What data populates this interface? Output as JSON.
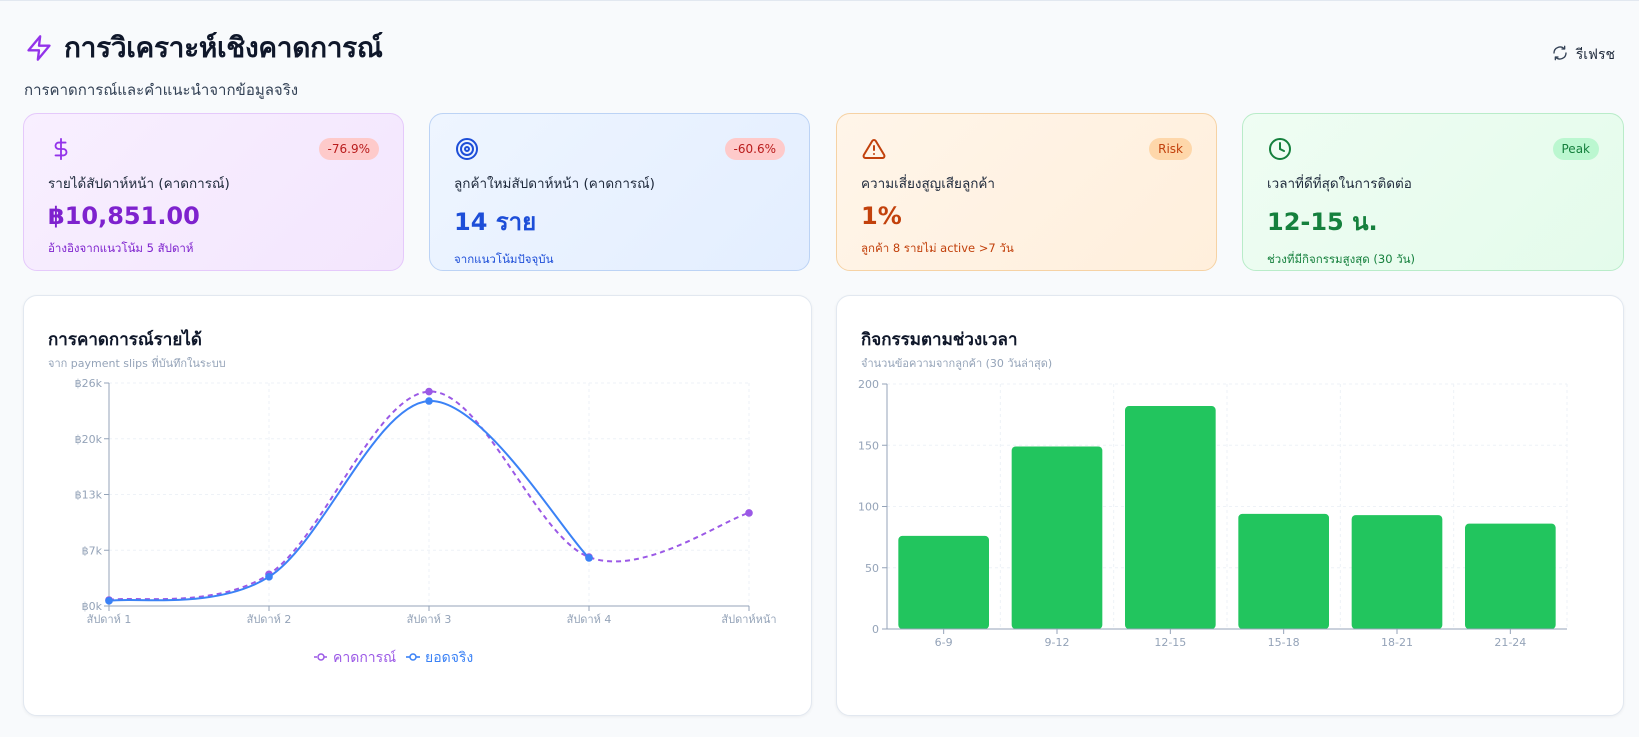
{
  "header": {
    "title": "การวิเคราะห์เชิงคาดการณ์",
    "subtitle": "การคาดการณ์และคำแนะนำจากข้อมูลจริง",
    "refresh_label": "รีเฟรช",
    "icon": "lightning-icon",
    "accent_color": "#9333ea"
  },
  "kpis": [
    {
      "icon": "dollar-icon",
      "label": "รายได้สัปดาห์หน้า (คาดการณ์)",
      "value": "฿10,851.00",
      "note": "อ้างอิงจากแนวโน้ม 5 สัปดาห์",
      "badge": "-76.9%"
    },
    {
      "icon": "target-icon",
      "label": "ลูกค้าใหม่สัปดาห์หน้า (คาดการณ์)",
      "value": "14 ราย",
      "note": "จากแนวโน้มปัจจุบัน",
      "badge": "-60.6%"
    },
    {
      "icon": "warning-icon",
      "label": "ความเสี่ยงสูญเสียลูกค้า",
      "value": "1%",
      "note": "ลูกค้า 8 รายไม่ active >7 วัน",
      "badge": "Risk"
    },
    {
      "icon": "clock-icon",
      "label": "เวลาที่ดีที่สุดในการติดต่อ",
      "value": "12-15 น.",
      "note": "ช่วงที่มีกิจกรรมสูงสุด (30 วัน)",
      "badge": "Peak"
    }
  ],
  "revenue_card": {
    "title": "การคาดการณ์รายได้",
    "subtitle": "จาก payment slips ที่บันทึกในระบบ"
  },
  "activity_card": {
    "title": "กิจกรรมตามช่วงเวลา",
    "subtitle": "จำนวนข้อความจากลูกค้า (30 วันล่าสุด)"
  },
  "chart_data": [
    {
      "type": "line",
      "categories": [
        "สัปดาห์ 1",
        "สัปดาห์ 2",
        "สัปดาห์ 3",
        "สัปดาห์ 4",
        "สัปดาห์หน้า"
      ],
      "y_ticks": [
        "฿0k",
        "฿7k",
        "฿13k",
        "฿20k",
        "฿26k"
      ],
      "ylim": [
        0,
        26000
      ],
      "grid": true,
      "legend_position": "bottom-center",
      "series": [
        {
          "name": "คาดการณ์",
          "color": "#9b59e6",
          "dashed": true,
          "values": [
            700,
            3700,
            25000,
            5700,
            10851
          ]
        },
        {
          "name": "ยอดจริง",
          "color": "#3b82f6",
          "dashed": false,
          "values": [
            600,
            3400,
            23900,
            5600,
            null
          ]
        }
      ]
    },
    {
      "type": "bar",
      "categories": [
        "6-9",
        "9-12",
        "12-15",
        "15-18",
        "18-21",
        "21-24"
      ],
      "values": [
        76,
        149,
        182,
        94,
        93,
        86
      ],
      "y_ticks": [
        "0",
        "50",
        "100",
        "150",
        "200"
      ],
      "ylim": [
        0,
        200
      ],
      "grid": true,
      "color": "#22c55e"
    }
  ]
}
